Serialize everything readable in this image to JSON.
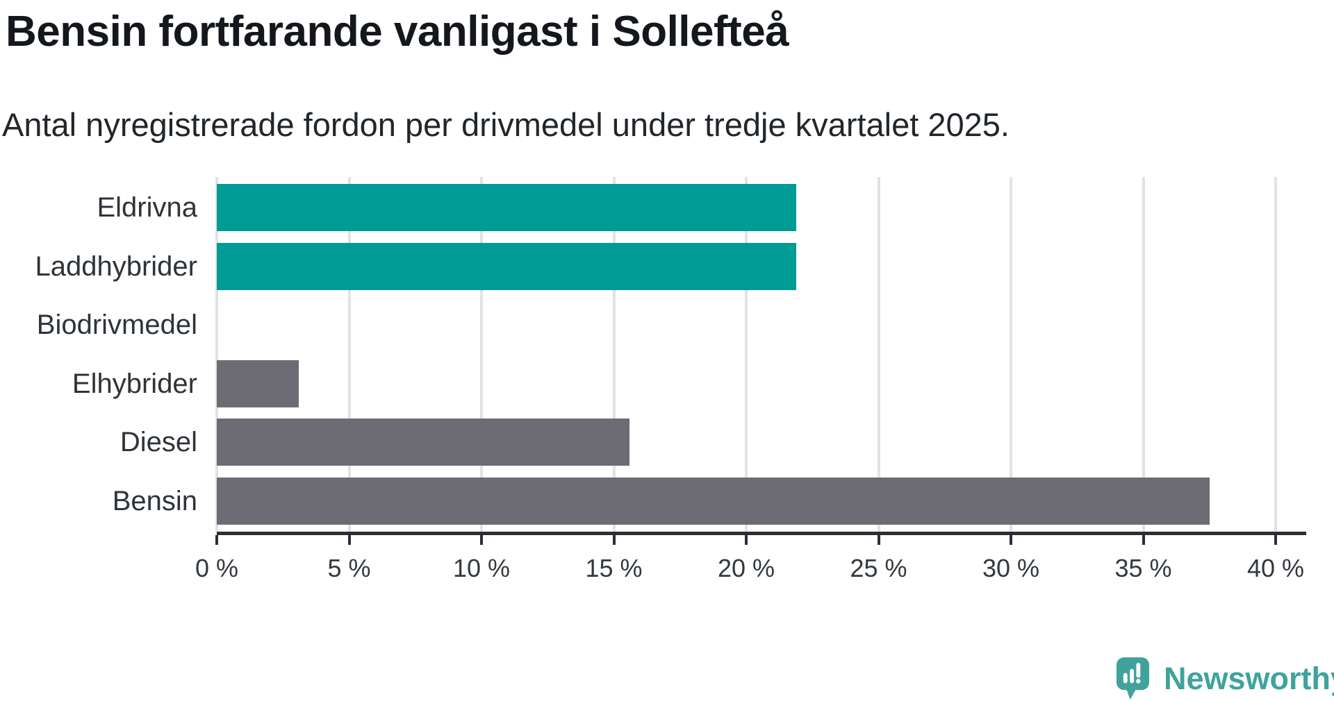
{
  "brand": {
    "name": "Newsworthy",
    "icon": "newsworthy-speech-bubble-chart-icon",
    "color": "#3fa39c"
  },
  "colors": {
    "highlight_bar": "#009b94",
    "default_bar": "#6d6c74",
    "gridline": "#e2e2e2",
    "axis": "#2b2e33",
    "title_text": "#14171c",
    "label_text": "#2e3338"
  },
  "chart_data": {
    "type": "bar",
    "orientation": "horizontal",
    "title": "Bensin fortfarande vanligast i Sollefteå",
    "subtitle": "Antal nyregistrerade fordon per drivmedel under tredje kvartalet 2025.",
    "categories": [
      "Eldrivna",
      "Laddhybrider",
      "Biodrivmedel",
      "Elhybrider",
      "Diesel",
      "Bensin"
    ],
    "values": [
      21.9,
      21.9,
      0,
      3.1,
      15.6,
      37.5
    ],
    "unit": "%",
    "bar_colors": [
      "#009b94",
      "#009b94",
      "#6d6c74",
      "#6d6c74",
      "#6d6c74",
      "#6d6c74"
    ],
    "xlim": [
      0,
      40
    ],
    "x_tick_step": 5,
    "x_tick_labels": [
      "0 %",
      "5 %",
      "10 %",
      "15 %",
      "20 %",
      "25 %",
      "30 %",
      "35 %",
      "40 %"
    ],
    "grid": true,
    "legend": false,
    "xlabel": "",
    "ylabel": ""
  }
}
